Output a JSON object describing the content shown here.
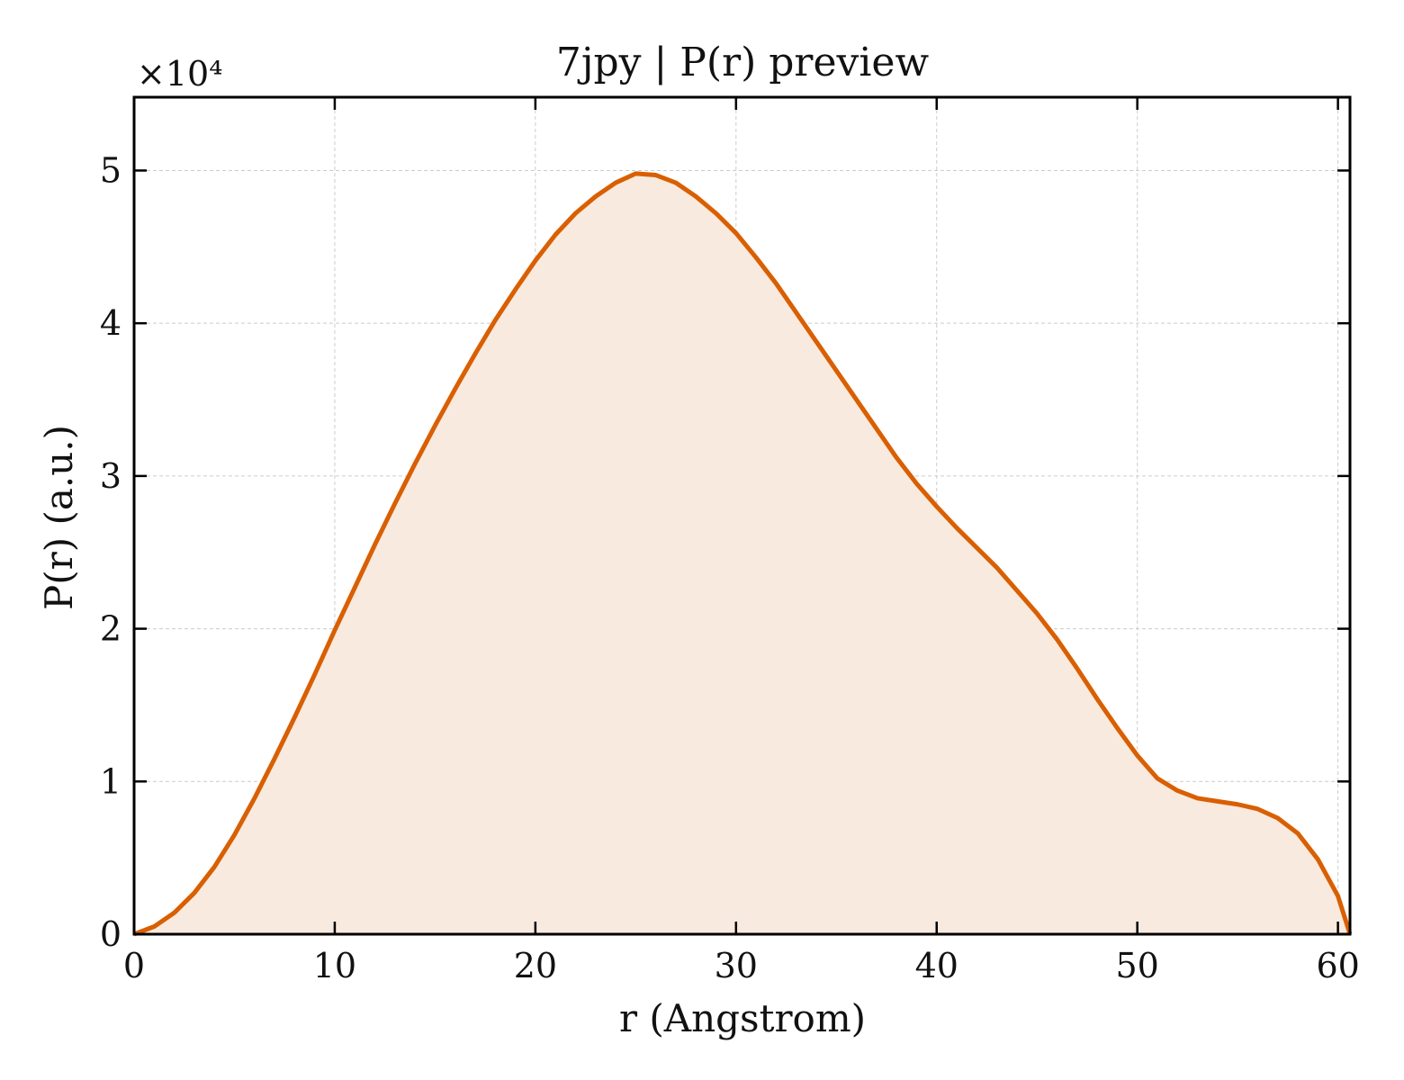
{
  "chart_data": {
    "type": "area",
    "title": "7jpy | P(r) preview",
    "xlabel": "r (Angstrom)",
    "ylabel": "P(r) (a.u.)",
    "y_multiplier_label": "×10⁴",
    "xlim": [
      0,
      60.6
    ],
    "ylim": [
      0,
      54800
    ],
    "x_ticks": [
      0,
      10,
      20,
      30,
      40,
      50,
      60
    ],
    "x_tick_labels": [
      "0",
      "10",
      "20",
      "30",
      "40",
      "50",
      "60"
    ],
    "y_ticks": [
      0,
      10000,
      20000,
      30000,
      40000,
      50000
    ],
    "y_tick_labels": [
      "0",
      "1",
      "2",
      "3",
      "4",
      "5"
    ],
    "grid": true,
    "colors": {
      "line": "#d95f02",
      "fill": "#f9eadf"
    },
    "series": [
      {
        "x": [
          0,
          1,
          2,
          3,
          4,
          5,
          6,
          7,
          8,
          9,
          10,
          11,
          12,
          13,
          14,
          15,
          16,
          17,
          18,
          19,
          20,
          21,
          22,
          23,
          24,
          25,
          26,
          27,
          28,
          29,
          30,
          31,
          32,
          33,
          34,
          35,
          36,
          37,
          38,
          39,
          40,
          41,
          42,
          43,
          44,
          45,
          46,
          47,
          48,
          49,
          50,
          51,
          52,
          53,
          54,
          55,
          56,
          57,
          58,
          59,
          60,
          60.6
        ],
        "y": [
          0,
          500,
          1400,
          2700,
          4400,
          6500,
          8900,
          11500,
          14200,
          17000,
          19900,
          22700,
          25500,
          28200,
          30800,
          33300,
          35700,
          38000,
          40200,
          42200,
          44100,
          45800,
          47200,
          48300,
          49200,
          49800,
          49700,
          49200,
          48300,
          47200,
          45900,
          44300,
          42600,
          40700,
          38800,
          36900,
          35000,
          33100,
          31200,
          29500,
          28000,
          26600,
          25300,
          24000,
          22500,
          21000,
          19300,
          17400,
          15400,
          13500,
          11700,
          10200,
          9400,
          8900,
          8700,
          8500,
          8200,
          7600,
          6600,
          4900,
          2500,
          0
        ]
      }
    ]
  }
}
